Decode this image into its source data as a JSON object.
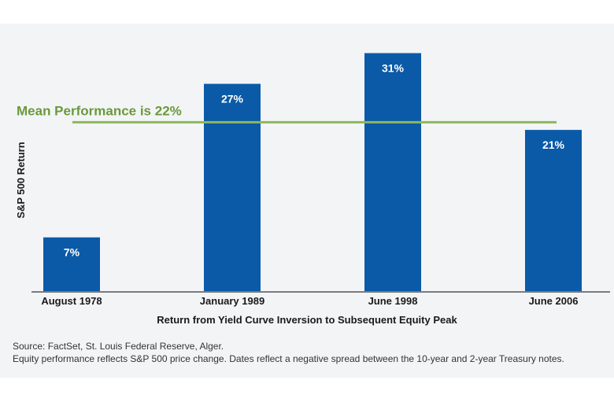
{
  "chart_data": {
    "type": "bar",
    "categories": [
      "August 1978",
      "January 1989",
      "June 1998",
      "June 2006"
    ],
    "values": [
      7,
      27,
      31,
      21
    ],
    "data_labels": [
      "7%",
      "27%",
      "31%",
      "21%"
    ],
    "title": "",
    "xlabel": "Return from Yield Curve Inversion to Subsequent Equity Peak",
    "ylabel": "S&P 500 Return",
    "ylim": [
      0,
      33
    ],
    "grid": false,
    "reference_line": {
      "value": 22,
      "label": "Mean Performance is 22%"
    },
    "colors": {
      "bar": "#0a5aa8",
      "mean_line": "#8db85a",
      "mean_text": "#6a9a3a",
      "baseline": "#555555"
    }
  },
  "footnotes": {
    "source": "Source: FactSet, St. Louis Federal Reserve, Alger.",
    "note": "Equity performance reflects S&P 500 price change.  Dates reflect a negative spread between the 10-year and 2-year Treasury notes."
  }
}
